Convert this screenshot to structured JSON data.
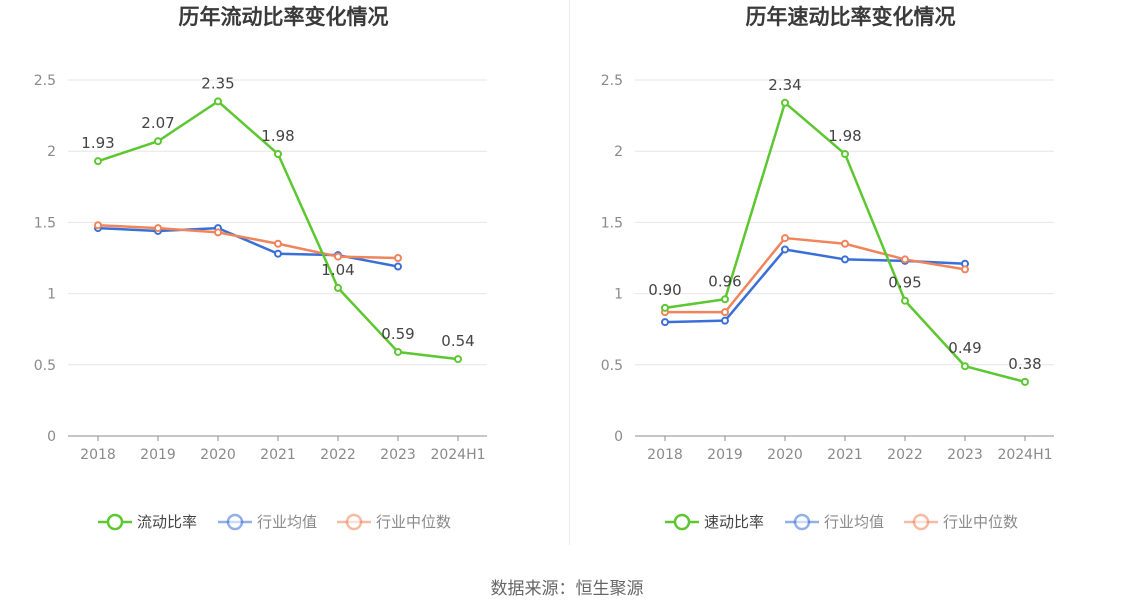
{
  "source_label": "数据来源：恒生聚源",
  "chart_data": [
    {
      "type": "line",
      "title": "历年流动比率变化情况",
      "categories": [
        "2018",
        "2019",
        "2020",
        "2021",
        "2022",
        "2023",
        "2024H1"
      ],
      "y_ticks": [
        "0",
        "0.5",
        "1",
        "1.5",
        "2",
        "2.5"
      ],
      "ylim": [
        0,
        2.5
      ],
      "grid": true,
      "legend_position": "bottom",
      "series": [
        {
          "name": "流动比率",
          "color": "#5cc730",
          "values": [
            1.93,
            2.07,
            2.35,
            1.98,
            1.04,
            0.59,
            0.54
          ],
          "labels": [
            "1.93",
            "2.07",
            "2.35",
            "1.98",
            "1.04",
            "0.59",
            "0.54"
          ]
        },
        {
          "name": "行业均值",
          "color": "#3a6fd8",
          "values": [
            1.46,
            1.44,
            1.46,
            1.28,
            1.27,
            1.19,
            null
          ]
        },
        {
          "name": "行业中位数",
          "color": "#f0845a",
          "values": [
            1.48,
            1.46,
            1.43,
            1.35,
            1.26,
            1.25,
            null
          ]
        }
      ]
    },
    {
      "type": "line",
      "title": "历年速动比率变化情况",
      "categories": [
        "2018",
        "2019",
        "2020",
        "2021",
        "2022",
        "2023",
        "2024H1"
      ],
      "y_ticks": [
        "0",
        "0.5",
        "1",
        "1.5",
        "2",
        "2.5"
      ],
      "ylim": [
        0,
        2.5
      ],
      "grid": true,
      "legend_position": "bottom",
      "series": [
        {
          "name": "速动比率",
          "color": "#5cc730",
          "values": [
            0.9,
            0.96,
            2.34,
            1.98,
            0.95,
            0.49,
            0.38
          ],
          "labels": [
            "0.90",
            "0.96",
            "2.34",
            "1.98",
            "0.95",
            "0.49",
            "0.38"
          ]
        },
        {
          "name": "行业均值",
          "color": "#3a6fd8",
          "values": [
            0.8,
            0.81,
            1.31,
            1.24,
            1.23,
            1.21,
            null
          ]
        },
        {
          "name": "行业中位数",
          "color": "#f0845a",
          "values": [
            0.87,
            0.87,
            1.39,
            1.35,
            1.24,
            1.17,
            null
          ]
        }
      ]
    }
  ]
}
